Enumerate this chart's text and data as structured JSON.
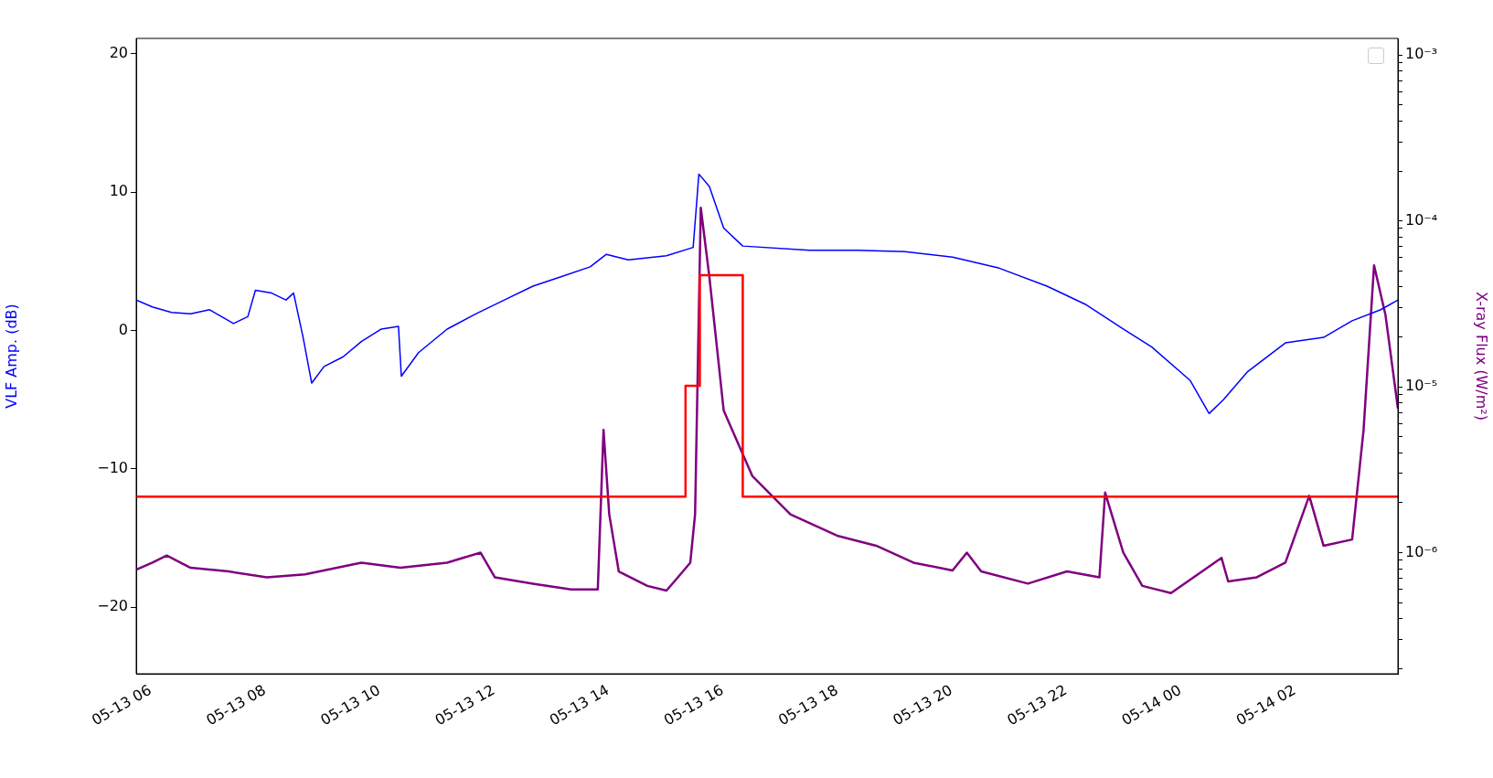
{
  "chart_data": {
    "type": "line",
    "ylabel": "VLF Amp. (dB)",
    "y2label": "X-ray Flux (W/m²)",
    "xlim": [
      "--05-13T05:45",
      "--05-14T03:48"
    ],
    "xticks": [
      {
        "value": "--05-13T06:00",
        "label": "05-13 06"
      },
      {
        "value": "--05-13T08:00",
        "label": "05-13 08"
      },
      {
        "value": "--05-13T10:00",
        "label": "05-13 10"
      },
      {
        "value": "--05-13T12:00",
        "label": "05-13 12"
      },
      {
        "value": "--05-13T14:00",
        "label": "05-13 14"
      },
      {
        "value": "--05-13T16:00",
        "label": "05-13 16"
      },
      {
        "value": "--05-13T18:00",
        "label": "05-13 18"
      },
      {
        "value": "--05-13T20:00",
        "label": "05-13 20"
      },
      {
        "value": "--05-13T22:00",
        "label": "05-13 22"
      },
      {
        "value": "--05-14T00:00",
        "label": "05-14 00"
      },
      {
        "value": "--05-14T02:00",
        "label": "05-14 02"
      }
    ],
    "ylim": [
      -24.8,
      21.1
    ],
    "yticks": [
      -20,
      -10,
      0,
      10,
      20
    ],
    "y2lim": [
      1.86e-07,
      0.00126
    ],
    "log": "y2",
    "y2ticks": [
      {
        "value": 2e-07,
        "label": null
      },
      {
        "value": 3e-07,
        "label": null
      },
      {
        "value": 4e-07,
        "label": null
      },
      {
        "value": 5e-07,
        "label": null
      },
      {
        "value": 6e-07,
        "label": null
      },
      {
        "value": 7e-07,
        "label": null
      },
      {
        "value": 8e-07,
        "label": null
      },
      {
        "value": 9e-07,
        "label": null
      },
      {
        "value": 1e-06,
        "label": "10⁻⁶"
      },
      {
        "value": 2e-06,
        "label": null
      },
      {
        "value": 3e-06,
        "label": null
      },
      {
        "value": 4e-06,
        "label": null
      },
      {
        "value": 5e-06,
        "label": null
      },
      {
        "value": 6e-06,
        "label": null
      },
      {
        "value": 7e-06,
        "label": null
      },
      {
        "value": 8e-06,
        "label": null
      },
      {
        "value": 9e-06,
        "label": null
      },
      {
        "value": 1e-05,
        "label": "10⁻⁵"
      },
      {
        "value": 2e-05,
        "label": null
      },
      {
        "value": 3e-05,
        "label": null
      },
      {
        "value": 4e-05,
        "label": null
      },
      {
        "value": 5e-05,
        "label": null
      },
      {
        "value": 6e-05,
        "label": null
      },
      {
        "value": 7e-05,
        "label": null
      },
      {
        "value": 8e-05,
        "label": null
      },
      {
        "value": 9e-05,
        "label": null
      },
      {
        "value": 0.0001,
        "label": "10⁻⁴"
      },
      {
        "value": 0.0002,
        "label": null
      },
      {
        "value": 0.0003,
        "label": null
      },
      {
        "value": 0.0004,
        "label": null
      },
      {
        "value": 0.0005,
        "label": null
      },
      {
        "value": 0.0006,
        "label": null
      },
      {
        "value": 0.0007,
        "label": null
      },
      {
        "value": 0.0008,
        "label": null
      },
      {
        "value": 0.0009,
        "label": null
      },
      {
        "value": 0.001,
        "label": "10⁻³"
      }
    ],
    "series": [
      {
        "color": "#0000ff",
        "x": [
          "--05-13T05:45",
          "--05-13T06:02",
          "--05-13T06:22",
          "--05-13T06:42",
          "--05-13T07:02",
          "--05-13T07:27",
          "--05-13T07:42",
          "--05-13T07:50",
          "--05-13T08:07",
          "--05-13T08:22",
          "--05-13T08:30",
          "--05-13T08:40",
          "--05-13T08:49",
          "--05-13T09:02",
          "--05-13T09:22",
          "--05-13T09:41",
          "--05-13T10:02",
          "--05-13T10:20",
          "--05-13T10:23",
          "--05-13T10:41",
          "--05-13T11:11",
          "--05-13T11:41",
          "--05-13T12:11",
          "--05-13T12:41",
          "--05-13T13:11",
          "--05-13T13:41",
          "--05-13T13:58",
          "--05-13T14:21",
          "--05-13T15:01",
          "--05-13T15:29",
          "--05-13T15:35",
          "--05-13T15:46",
          "--05-13T16:01",
          "--05-13T16:21",
          "--05-13T17:31",
          "--05-13T18:21",
          "--05-13T19:11",
          "--05-13T20:01",
          "--05-13T20:50",
          "--05-13T21:40",
          "--05-13T22:20",
          "--05-13T23:00",
          "--05-13T23:30",
          "--05-14T00:10",
          "--05-14T00:30",
          "--05-14T00:45",
          "--05-14T01:10",
          "--05-14T01:50",
          "--05-14T02:30",
          "--05-14T03:00",
          "--05-14T03:30",
          "--05-14T03:48"
        ],
        "values": [
          2.2,
          1.7,
          1.3,
          1.2,
          1.5,
          0.5,
          1.0,
          2.9,
          2.7,
          2.2,
          2.7,
          -0.5,
          -3.8,
          -2.6,
          -1.9,
          -0.8,
          0.1,
          0.3,
          -3.3,
          -1.6,
          0.1,
          1.2,
          2.2,
          3.2,
          3.9,
          4.6,
          5.5,
          5.1,
          5.4,
          6.0,
          11.3,
          10.4,
          7.4,
          6.1,
          5.8,
          5.8,
          5.7,
          5.3,
          4.5,
          3.2,
          1.9,
          0.1,
          -1.2,
          -3.6,
          -6.0,
          -5.0,
          -3.0,
          -0.9,
          -0.5,
          0.7,
          1.5,
          2.2
        ]
      },
      {
        "type": "step",
        "color": "#ff0000",
        "x": [
          "--05-13T05:45",
          "--05-13T15:21",
          "--05-13T15:36",
          "--05-13T16:21",
          "--05-14T03:48"
        ],
        "values": [
          -12,
          -4,
          4,
          -12,
          -12
        ]
      },
      {
        "color": "#800080",
        "axis": "y2",
        "x": [
          "--05-13T05:45",
          "--05-13T06:02",
          "--05-13T06:17",
          "--05-13T06:42",
          "--05-13T07:22",
          "--05-13T08:02",
          "--05-13T08:42",
          "--05-13T09:41",
          "--05-13T10:22",
          "--05-13T11:11",
          "--05-13T11:46",
          "--05-13T12:01",
          "--05-13T12:41",
          "--05-13T13:21",
          "--05-13T13:49",
          "--05-13T13:55",
          "--05-13T14:01",
          "--05-13T14:11",
          "--05-13T14:41",
          "--05-13T15:01",
          "--05-13T15:13",
          "--05-13T15:26",
          "--05-13T15:31",
          "--05-13T15:37",
          "--05-13T15:46",
          "--05-13T16:01",
          "--05-13T16:31",
          "--05-13T17:11",
          "--05-13T18:01",
          "--05-13T18:41",
          "--05-13T19:20",
          "--05-13T20:01",
          "--05-13T20:16",
          "--05-13T20:31",
          "--05-13T21:20",
          "--05-13T22:01",
          "--05-13T22:35",
          "--05-13T22:41",
          "--05-13T23:00",
          "--05-13T23:20",
          "--05-13T23:50",
          "--05-14T00:43",
          "--05-14T00:50",
          "--05-14T01:20",
          "--05-14T01:50",
          "--05-14T02:15",
          "--05-14T02:30",
          "--05-14T03:00",
          "--05-14T03:12",
          "--05-14T03:23",
          "--05-14T03:35",
          "--05-14T03:48"
        ],
        "values": [
          7.9e-07,
          8.7e-07,
          9.6e-07,
          8.1e-07,
          7.7e-07,
          7.1e-07,
          7.4e-07,
          8.7e-07,
          8.1e-07,
          8.7e-07,
          1e-06,
          7.1e-07,
          6.5e-07,
          6e-07,
          6e-07,
          5.5e-06,
          1.7e-06,
          7.7e-07,
          6.3e-07,
          5.9e-07,
          7.1e-07,
          8.7e-07,
          1.7e-06,
          0.00012,
          4.6e-05,
          7.2e-06,
          2.9e-06,
          1.7e-06,
          1.26e-06,
          1.1e-06,
          8.7e-07,
          7.8e-07,
          1e-06,
          7.7e-07,
          6.5e-07,
          7.7e-07,
          7.1e-07,
          2.3e-06,
          1e-06,
          6.3e-07,
          5.7e-07,
          9.3e-07,
          6.7e-07,
          7.1e-07,
          8.7e-07,
          2.2e-06,
          1.1e-06,
          1.2e-06,
          5.5e-06,
          5.4e-05,
          2.7e-05,
          7.4e-06
        ]
      }
    ]
  }
}
